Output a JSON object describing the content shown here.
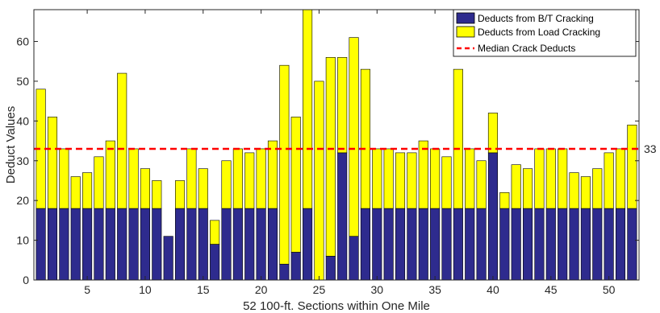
{
  "chart_data": {
    "type": "bar",
    "stacked": true,
    "x": [
      1,
      2,
      3,
      4,
      5,
      6,
      7,
      8,
      9,
      10,
      11,
      12,
      13,
      14,
      15,
      16,
      17,
      18,
      19,
      20,
      21,
      22,
      23,
      24,
      25,
      26,
      27,
      28,
      29,
      30,
      31,
      32,
      33,
      34,
      35,
      36,
      37,
      38,
      39,
      40,
      41,
      42,
      43,
      44,
      45,
      46,
      47,
      48,
      49,
      50,
      51,
      52
    ],
    "series": [
      {
        "name": "Deducts from B/T Cracking",
        "color": "#2e2b8e",
        "values": [
          18,
          18,
          18,
          18,
          18,
          18,
          18,
          18,
          18,
          18,
          18,
          11,
          18,
          18,
          18,
          9,
          18,
          18,
          18,
          18,
          18,
          4,
          7,
          18,
          0,
          6,
          32,
          11,
          18,
          18,
          18,
          18,
          18,
          18,
          18,
          18,
          18,
          18,
          18,
          32,
          18,
          18,
          18,
          18,
          18,
          18,
          18,
          18,
          18,
          18,
          18,
          18
        ]
      },
      {
        "name": "Deducts from Load Cracking",
        "color": "#ffff00",
        "values": [
          30,
          23,
          15,
          8,
          9,
          13,
          17,
          34,
          15,
          10,
          7,
          0,
          7,
          15,
          10,
          6,
          12,
          15,
          14,
          15,
          17,
          50,
          34,
          50,
          50,
          50,
          24,
          50,
          35,
          15,
          15,
          14,
          14,
          17,
          15,
          13,
          35,
          15,
          12,
          10,
          4,
          11,
          10,
          15,
          15,
          15,
          9,
          8,
          10,
          14,
          15,
          21
        ]
      }
    ],
    "reference_line": {
      "name": "Median Crack Deducts",
      "value": 33,
      "label": "33",
      "color": "#ff0000"
    },
    "xlabel": "52 100-ft. Sections within One Mile",
    "ylabel": "Deduct Values",
    "xticks": [
      5,
      10,
      15,
      20,
      25,
      30,
      35,
      40,
      45,
      50
    ],
    "yticks": [
      0,
      10,
      20,
      30,
      40,
      50,
      60
    ],
    "xlim": [
      0.4,
      52.6
    ],
    "ylim": [
      0,
      68
    ],
    "legend_position": "top-right",
    "grid": false
  }
}
